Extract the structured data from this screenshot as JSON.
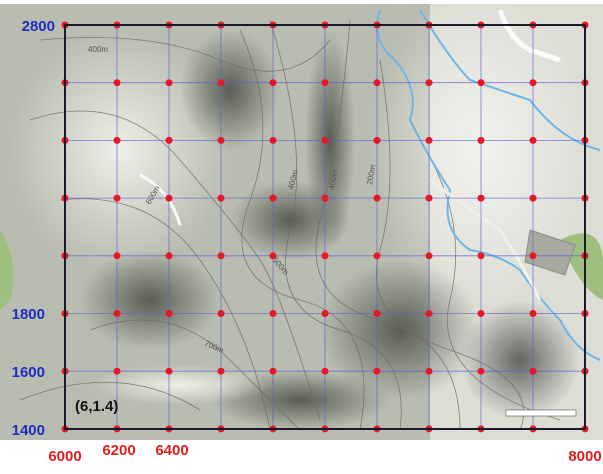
{
  "map": {
    "y_labels": [
      "2800",
      "1800",
      "1600",
      "1400"
    ],
    "x_labels": [
      "6000",
      "6200",
      "6400",
      "8000"
    ],
    "annotation": "(6,1.4)",
    "contour_labels": [
      "400m",
      "600m",
      "500m",
      "400m",
      "200m",
      "700m",
      "400m"
    ]
  }
}
